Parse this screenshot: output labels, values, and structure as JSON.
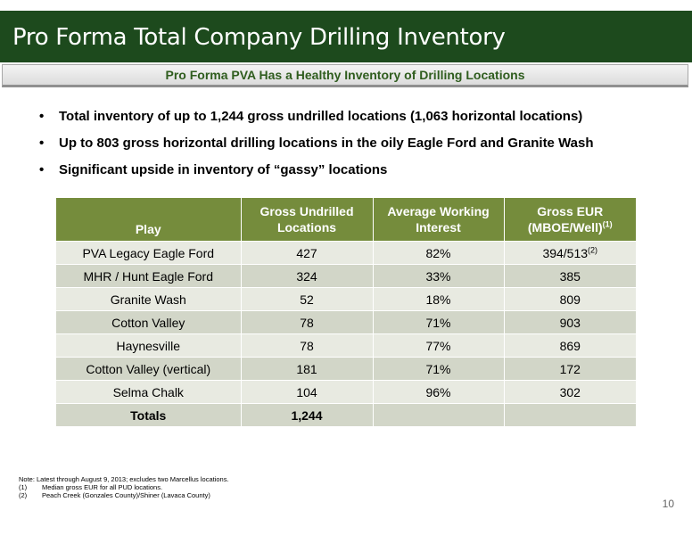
{
  "title": "Pro Forma Total Company Drilling Inventory",
  "subtitle": "Pro Forma PVA Has a Healthy Inventory of Drilling Locations",
  "bullets": [
    "Total inventory of up to 1,244 gross undrilled locations (1,063 horizontal locations)",
    "Up to 803 gross horizontal drilling locations in the oily Eagle Ford and Granite Wash",
    "Significant upside in inventory of “gassy” locations"
  ],
  "bullet_char": "•",
  "table": {
    "headers": {
      "play": "Play",
      "gross_undrilled_1": "Gross Undrilled",
      "gross_undrilled_2": "Locations",
      "awi_1": "Average Working",
      "awi_2": "Interest",
      "eur_1": "Gross EUR",
      "eur_2": "(MBOE/Well)",
      "eur_sup": "(1)"
    },
    "rows": [
      {
        "play": "PVA Legacy Eagle Ford",
        "locations": "427",
        "interest": "82%",
        "eur": "394/513",
        "eur_sup": "(2)"
      },
      {
        "play": "MHR / Hunt Eagle Ford",
        "locations": "324",
        "interest": "33%",
        "eur": "385"
      },
      {
        "play": "Granite Wash",
        "locations": "52",
        "interest": "18%",
        "eur": "809"
      },
      {
        "play": "Cotton Valley",
        "locations": "78",
        "interest": "71%",
        "eur": "903"
      },
      {
        "play": "Haynesville",
        "locations": "78",
        "interest": "77%",
        "eur": "869"
      },
      {
        "play": "Cotton Valley (vertical)",
        "locations": "181",
        "interest": "71%",
        "eur": "172"
      },
      {
        "play": "Selma Chalk",
        "locations": "104",
        "interest": "96%",
        "eur": "302"
      }
    ],
    "totals": {
      "label": "Totals",
      "locations": "1,244",
      "interest": "",
      "eur": ""
    }
  },
  "notes": {
    "main": "Note: Latest through August 9, 2013; excludes two Marcellus locations.",
    "items": [
      {
        "key": "(1)",
        "text": "Median gross EUR for all PUD locations."
      },
      {
        "key": "(2)",
        "text": "Peach Creek (Gonzales County)/Shiner (Lavaca County)"
      }
    ]
  },
  "page_number": "10",
  "colors": {
    "title_bar": "#1d4a1d",
    "subtitle_text": "#2f5d1e",
    "table_header": "#758c3c",
    "row_light": "#e8eae1",
    "row_dark": "#d2d6c8"
  }
}
